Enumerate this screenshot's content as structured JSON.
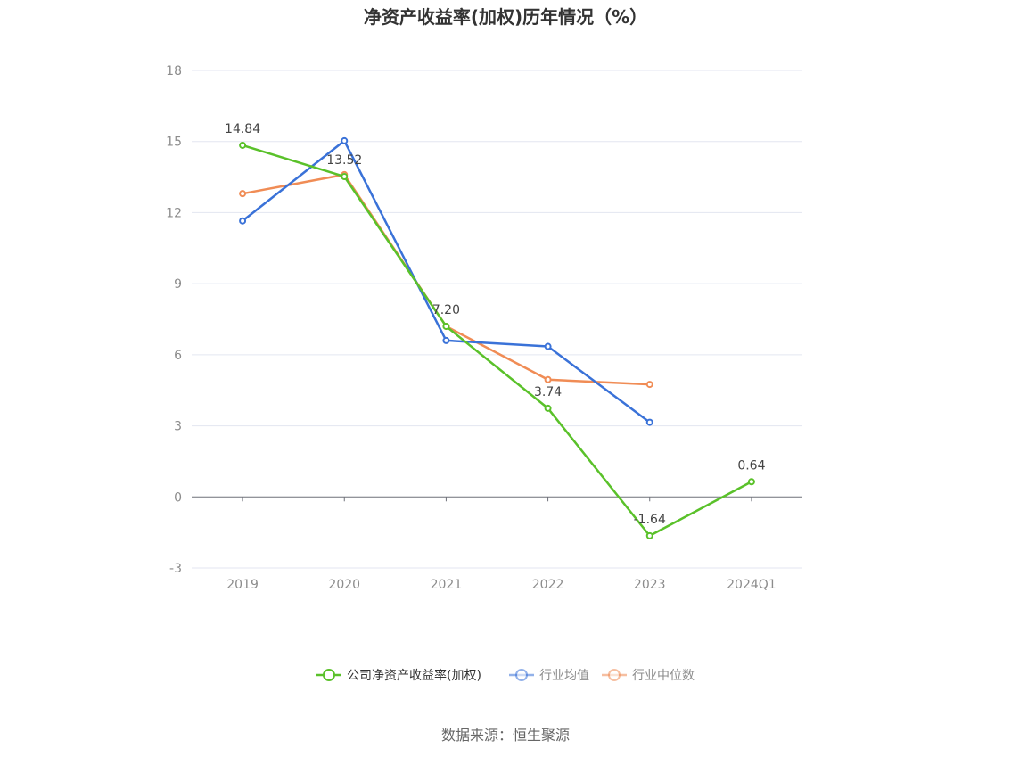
{
  "chart_data": {
    "type": "line",
    "title": "净资产收益率(加权)历年情况（%）",
    "categories": [
      "2019",
      "2020",
      "2021",
      "2022",
      "2023",
      "2024Q1"
    ],
    "ylim": [
      -3,
      18
    ],
    "yticks": [
      -3,
      0,
      3,
      6,
      9,
      12,
      15,
      18
    ],
    "grid": true,
    "legend_position": "bottom",
    "series": [
      {
        "name": "公司净资产收益率(加权)",
        "color": "#5ac12a",
        "values": [
          14.84,
          13.52,
          7.2,
          3.74,
          -1.64,
          0.64
        ],
        "labels": [
          "14.84",
          "13.52",
          "7.20",
          "3.74",
          "-1.64",
          "0.64"
        ]
      },
      {
        "name": "行业均值",
        "color": "#3a72d8",
        "values": [
          11.65,
          15.03,
          6.6,
          6.35,
          3.15,
          null
        ]
      },
      {
        "name": "行业中位数",
        "color": "#f08c55",
        "values": [
          12.8,
          13.6,
          7.2,
          4.95,
          4.75,
          null
        ]
      }
    ],
    "source": "数据来源：恒生聚源"
  }
}
